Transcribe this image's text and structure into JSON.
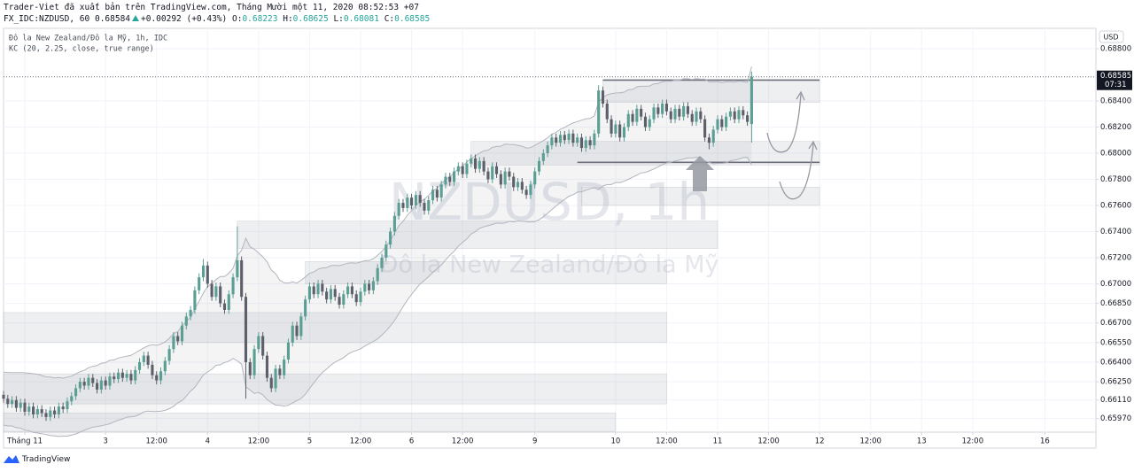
{
  "chart_data": {
    "type": "candlestick",
    "title": "Trader-Viet đã xuất bản trên TradingView.com, Tháng Mười một 11, 2020 08:52:53 +07",
    "quote": {
      "symbol": "FX_IDC:NZDUSD, 60",
      "last": "0.68584",
      "change": "+0.00292 (+0.43%)",
      "fields": [
        {
          "key": "O:",
          "value": "0.68223"
        },
        {
          "key": "H:",
          "value": "0.68625"
        },
        {
          "key": "L:",
          "value": "0.68081"
        },
        {
          "key": "C:",
          "value": "0.68585"
        }
      ]
    },
    "legend": [
      "Đô la New Zealand/Đô la Mỹ, 1h, IDC",
      "KC (20, 2.25, close, true range)"
    ],
    "watermark": [
      "NZDUSD, 1h",
      "Đô la New Zealand/Đô la Mỹ"
    ],
    "currency": "USD",
    "countdown": "07:31",
    "price_label": "0.68585",
    "branding": "TradingView",
    "kc_length": 20,
    "kc_mult": 2.25,
    "up_color": "#5b9e94",
    "down_color": "#5d606b",
    "xlim": [
      0,
      257
    ],
    "ylim": [
      0.65864,
      0.68956
    ],
    "xticks": [
      {
        "value": 5,
        "label": "Tháng 11"
      },
      {
        "value": 24,
        "label": "3"
      },
      {
        "value": 36,
        "label": "12:00"
      },
      {
        "value": 48,
        "label": "4"
      },
      {
        "value": 60,
        "label": "12:00"
      },
      {
        "value": 72,
        "label": "5"
      },
      {
        "value": 84,
        "label": "12:00"
      },
      {
        "value": 96,
        "label": "6"
      },
      {
        "value": 108,
        "label": "12:00"
      },
      {
        "value": 125,
        "label": "9"
      },
      {
        "value": 144,
        "label": "10"
      },
      {
        "value": 156,
        "label": "12:00"
      },
      {
        "value": 168,
        "label": "11"
      },
      {
        "value": 180,
        "label": "12:00"
      },
      {
        "value": 192,
        "label": "12"
      },
      {
        "value": 204,
        "label": "12:00"
      },
      {
        "value": 216,
        "label": "13"
      },
      {
        "value": 228,
        "label": "12:00"
      },
      {
        "value": 245,
        "label": "16"
      }
    ],
    "yticks": [
      {
        "value": 0.688,
        "label": "0.68800"
      },
      {
        "value": 0.684,
        "label": "0.68400"
      },
      {
        "value": 0.682,
        "label": "0.68200"
      },
      {
        "value": 0.68,
        "label": "0.68000"
      },
      {
        "value": 0.678,
        "label": "0.67800"
      },
      {
        "value": 0.676,
        "label": "0.67600"
      },
      {
        "value": 0.674,
        "label": "0.67400"
      },
      {
        "value": 0.672,
        "label": "0.67200"
      },
      {
        "value": 0.67,
        "label": "0.67000"
      },
      {
        "value": 0.6685,
        "label": "0.66850"
      },
      {
        "value": 0.667,
        "label": "0.66700"
      },
      {
        "value": 0.6655,
        "label": "0.66550"
      },
      {
        "value": 0.664,
        "label": "0.66400"
      },
      {
        "value": 0.6625,
        "label": "0.66250"
      },
      {
        "value": 0.6611,
        "label": "0.66110"
      },
      {
        "value": 0.6597,
        "label": "0.65970"
      }
    ],
    "zones": [
      {
        "x0": 0,
        "x1": 144,
        "y0": 0.6587,
        "y1": 0.6601
      },
      {
        "x0": 0,
        "x1": 156,
        "y0": 0.6608,
        "y1": 0.6631
      },
      {
        "x0": 0,
        "x1": 156,
        "y0": 0.6655,
        "y1": 0.6678
      },
      {
        "x0": 71,
        "x1": 156,
        "y0": 0.67,
        "y1": 0.6717
      },
      {
        "x0": 55,
        "x1": 168,
        "y0": 0.6727,
        "y1": 0.6748
      },
      {
        "x0": 110,
        "x1": 192,
        "y0": 0.6791,
        "y1": 0.6809
      },
      {
        "x0": 136,
        "x1": 192,
        "y0": 0.676,
        "y1": 0.6774
      },
      {
        "x0": 141,
        "x1": 192,
        "y0": 0.6839,
        "y1": 0.6856
      }
    ],
    "levels": [
      {
        "x0": 141,
        "x1": 192,
        "y": 0.6856
      },
      {
        "x0": 135,
        "x1": 192,
        "y": 0.6793
      }
    ],
    "candles": [
      [
        0.6615,
        0.6618,
        0.6609,
        0.6612
      ],
      [
        0.6612,
        0.6615,
        0.6605,
        0.6608
      ],
      [
        0.6608,
        0.6614,
        0.6605,
        0.6611
      ],
      [
        0.6611,
        0.6614,
        0.6602,
        0.6605
      ],
      [
        0.6605,
        0.6612,
        0.6602,
        0.6609
      ],
      [
        0.6609,
        0.6612,
        0.6599,
        0.6602
      ],
      [
        0.6602,
        0.6609,
        0.6599,
        0.6606
      ],
      [
        0.6606,
        0.6609,
        0.6597,
        0.66
      ],
      [
        0.66,
        0.6607,
        0.6597,
        0.6604
      ],
      [
        0.6604,
        0.6607,
        0.6598,
        0.6601
      ],
      [
        0.6601,
        0.6604,
        0.6595,
        0.6598
      ],
      [
        0.6598,
        0.6606,
        0.6595,
        0.6603
      ],
      [
        0.6603,
        0.6606,
        0.6597,
        0.66
      ],
      [
        0.66,
        0.6609,
        0.6597,
        0.6606
      ],
      [
        0.6606,
        0.6609,
        0.6601,
        0.6604
      ],
      [
        0.6604,
        0.6613,
        0.6601,
        0.661
      ],
      [
        0.661,
        0.6617,
        0.6607,
        0.6614
      ],
      [
        0.6614,
        0.6623,
        0.6611,
        0.662
      ],
      [
        0.662,
        0.6628,
        0.6617,
        0.6625
      ],
      [
        0.6625,
        0.6628,
        0.6619,
        0.6622
      ],
      [
        0.6622,
        0.6631,
        0.6619,
        0.6628
      ],
      [
        0.6628,
        0.6631,
        0.6621,
        0.6624
      ],
      [
        0.6624,
        0.6627,
        0.6616,
        0.6619
      ],
      [
        0.6619,
        0.6629,
        0.6616,
        0.6626
      ],
      [
        0.6626,
        0.6629,
        0.6619,
        0.6622
      ],
      [
        0.6622,
        0.6632,
        0.6619,
        0.6629
      ],
      [
        0.6629,
        0.6632,
        0.6624,
        0.6627
      ],
      [
        0.6627,
        0.6635,
        0.6624,
        0.6632
      ],
      [
        0.6632,
        0.6635,
        0.6625,
        0.6628
      ],
      [
        0.6628,
        0.6634,
        0.6625,
        0.6631
      ],
      [
        0.6631,
        0.6634,
        0.6623,
        0.6626
      ],
      [
        0.6626,
        0.6637,
        0.6623,
        0.6634
      ],
      [
        0.6634,
        0.6643,
        0.6631,
        0.664
      ],
      [
        0.664,
        0.6648,
        0.6637,
        0.6645
      ],
      [
        0.6645,
        0.6648,
        0.6635,
        0.6638
      ],
      [
        0.6638,
        0.6641,
        0.6627,
        0.663
      ],
      [
        0.663,
        0.6633,
        0.6623,
        0.6626
      ],
      [
        0.6626,
        0.6636,
        0.6623,
        0.6633
      ],
      [
        0.6633,
        0.6644,
        0.663,
        0.6641
      ],
      [
        0.6641,
        0.6653,
        0.6638,
        0.665
      ],
      [
        0.665,
        0.6663,
        0.6647,
        0.666
      ],
      [
        0.666,
        0.6663,
        0.6653,
        0.6656
      ],
      [
        0.6656,
        0.6671,
        0.6653,
        0.6668
      ],
      [
        0.6668,
        0.6678,
        0.6665,
        0.6675
      ],
      [
        0.6675,
        0.6683,
        0.6672,
        0.668
      ],
      [
        0.668,
        0.6698,
        0.6677,
        0.6695
      ],
      [
        0.6695,
        0.6708,
        0.6692,
        0.6705
      ],
      [
        0.6705,
        0.6719,
        0.6702,
        0.6714
      ],
      [
        0.6714,
        0.6717,
        0.6697,
        0.67
      ],
      [
        0.67,
        0.6703,
        0.6687,
        0.669
      ],
      [
        0.669,
        0.6701,
        0.6687,
        0.6698
      ],
      [
        0.6698,
        0.6701,
        0.6682,
        0.6685
      ],
      [
        0.6685,
        0.6688,
        0.6677,
        0.668
      ],
      [
        0.668,
        0.6695,
        0.6677,
        0.6692
      ],
      [
        0.6692,
        0.6708,
        0.6689,
        0.6705
      ],
      [
        0.6705,
        0.6744,
        0.6702,
        0.6718
      ],
      [
        0.6718,
        0.6721,
        0.6687,
        0.669
      ],
      [
        0.669,
        0.6693,
        0.6612,
        0.664
      ],
      [
        0.664,
        0.6643,
        0.6627,
        0.663
      ],
      [
        0.663,
        0.6653,
        0.6627,
        0.665
      ],
      [
        0.665,
        0.6663,
        0.6647,
        0.666
      ],
      [
        0.666,
        0.6663,
        0.6642,
        0.6645
      ],
      [
        0.6645,
        0.6648,
        0.6625,
        0.6628
      ],
      [
        0.6628,
        0.6631,
        0.6617,
        0.662
      ],
      [
        0.662,
        0.6638,
        0.6617,
        0.6635
      ],
      [
        0.6635,
        0.6638,
        0.6627,
        0.663
      ],
      [
        0.663,
        0.6645,
        0.6627,
        0.6642
      ],
      [
        0.6642,
        0.6658,
        0.6639,
        0.6655
      ],
      [
        0.6655,
        0.6671,
        0.6652,
        0.6668
      ],
      [
        0.6668,
        0.6671,
        0.6657,
        0.666
      ],
      [
        0.666,
        0.6678,
        0.6657,
        0.6675
      ],
      [
        0.6675,
        0.6691,
        0.6672,
        0.6688
      ],
      [
        0.6688,
        0.6701,
        0.6685,
        0.6698
      ],
      [
        0.6698,
        0.6701,
        0.6689,
        0.6692
      ],
      [
        0.6692,
        0.6703,
        0.6689,
        0.67
      ],
      [
        0.67,
        0.6703,
        0.6691,
        0.6694
      ],
      [
        0.6694,
        0.6697,
        0.6685,
        0.6688
      ],
      [
        0.6688,
        0.6699,
        0.6685,
        0.6696
      ],
      [
        0.6696,
        0.6699,
        0.6687,
        0.669
      ],
      [
        0.669,
        0.6693,
        0.6681,
        0.6684
      ],
      [
        0.6684,
        0.6695,
        0.6681,
        0.6692
      ],
      [
        0.6692,
        0.6701,
        0.6689,
        0.6698
      ],
      [
        0.6698,
        0.6701,
        0.6689,
        0.6692
      ],
      [
        0.6692,
        0.6695,
        0.6683,
        0.6686
      ],
      [
        0.6686,
        0.6697,
        0.6683,
        0.6694
      ],
      [
        0.6694,
        0.6703,
        0.6691,
        0.67
      ],
      [
        0.67,
        0.6703,
        0.6692,
        0.6695
      ],
      [
        0.6695,
        0.6705,
        0.6692,
        0.6702
      ],
      [
        0.6702,
        0.6715,
        0.6699,
        0.6712
      ],
      [
        0.6712,
        0.6723,
        0.6709,
        0.672
      ],
      [
        0.672,
        0.6733,
        0.6717,
        0.673
      ],
      [
        0.673,
        0.6743,
        0.6727,
        0.674
      ],
      [
        0.674,
        0.6755,
        0.6737,
        0.6752
      ],
      [
        0.6752,
        0.6765,
        0.6749,
        0.6762
      ],
      [
        0.6762,
        0.6765,
        0.6755,
        0.6758
      ],
      [
        0.6758,
        0.6769,
        0.6755,
        0.6766
      ],
      [
        0.6766,
        0.6769,
        0.6757,
        0.676
      ],
      [
        0.676,
        0.6771,
        0.6757,
        0.6768
      ],
      [
        0.6768,
        0.6771,
        0.6759,
        0.6762
      ],
      [
        0.6762,
        0.6765,
        0.6753,
        0.6756
      ],
      [
        0.6756,
        0.6767,
        0.6753,
        0.6764
      ],
      [
        0.6764,
        0.6775,
        0.6761,
        0.6772
      ],
      [
        0.6772,
        0.6775,
        0.6763,
        0.6766
      ],
      [
        0.6766,
        0.6779,
        0.6763,
        0.6776
      ],
      [
        0.6776,
        0.6785,
        0.6773,
        0.6782
      ],
      [
        0.6782,
        0.6785,
        0.6775,
        0.6778
      ],
      [
        0.6778,
        0.6789,
        0.6775,
        0.6786
      ],
      [
        0.6786,
        0.6793,
        0.6783,
        0.679
      ],
      [
        0.679,
        0.6793,
        0.6781,
        0.6784
      ],
      [
        0.6784,
        0.6795,
        0.6781,
        0.6792
      ],
      [
        0.6792,
        0.6799,
        0.6789,
        0.6796
      ],
      [
        0.6796,
        0.6799,
        0.6785,
        0.6788
      ],
      [
        0.6788,
        0.6797,
        0.6785,
        0.6794
      ],
      [
        0.6794,
        0.6797,
        0.6783,
        0.6786
      ],
      [
        0.6786,
        0.6789,
        0.6777,
        0.678
      ],
      [
        0.678,
        0.6793,
        0.6777,
        0.679
      ],
      [
        0.679,
        0.6793,
        0.6781,
        0.6784
      ],
      [
        0.6784,
        0.6787,
        0.6773,
        0.6776
      ],
      [
        0.6776,
        0.6789,
        0.6773,
        0.6786
      ],
      [
        0.6786,
        0.6789,
        0.6779,
        0.6782
      ],
      [
        0.6782,
        0.6785,
        0.6771,
        0.6774
      ],
      [
        0.6774,
        0.6781,
        0.6771,
        0.6778
      ],
      [
        0.6778,
        0.6781,
        0.6769,
        0.6772
      ],
      [
        0.6772,
        0.6775,
        0.6765,
        0.6768
      ],
      [
        0.6768,
        0.6779,
        0.6765,
        0.6776
      ],
      [
        0.6776,
        0.6789,
        0.6773,
        0.6786
      ],
      [
        0.6786,
        0.6797,
        0.6783,
        0.6794
      ],
      [
        0.6794,
        0.6803,
        0.6791,
        0.68
      ],
      [
        0.68,
        0.6809,
        0.6797,
        0.6806
      ],
      [
        0.6806,
        0.6815,
        0.6803,
        0.6812
      ],
      [
        0.6812,
        0.6815,
        0.6805,
        0.6808
      ],
      [
        0.6808,
        0.6817,
        0.6805,
        0.6814
      ],
      [
        0.6814,
        0.6817,
        0.6807,
        0.681
      ],
      [
        0.681,
        0.6818,
        0.6807,
        0.6815
      ],
      [
        0.6815,
        0.6818,
        0.6805,
        0.6808
      ],
      [
        0.6808,
        0.6815,
        0.6805,
        0.6812
      ],
      [
        0.6812,
        0.6815,
        0.6801,
        0.6804
      ],
      [
        0.6804,
        0.6813,
        0.6801,
        0.681
      ],
      [
        0.681,
        0.6813,
        0.6803,
        0.6806
      ],
      [
        0.6806,
        0.6818,
        0.6803,
        0.6815
      ],
      [
        0.6815,
        0.6852,
        0.6812,
        0.6848
      ],
      [
        0.6848,
        0.6851,
        0.6835,
        0.6838
      ],
      [
        0.6838,
        0.6841,
        0.6823,
        0.6826
      ],
      [
        0.6826,
        0.6829,
        0.6812,
        0.6815
      ],
      [
        0.6815,
        0.6825,
        0.6812,
        0.6822
      ],
      [
        0.6822,
        0.6825,
        0.6809,
        0.6812
      ],
      [
        0.6812,
        0.6823,
        0.6809,
        0.682
      ],
      [
        0.682,
        0.6833,
        0.6817,
        0.683
      ],
      [
        0.683,
        0.6833,
        0.6821,
        0.6824
      ],
      [
        0.6824,
        0.6837,
        0.6821,
        0.6834
      ],
      [
        0.6834,
        0.6837,
        0.6825,
        0.6828
      ],
      [
        0.6828,
        0.6831,
        0.6817,
        0.682
      ],
      [
        0.682,
        0.6829,
        0.6817,
        0.6826
      ],
      [
        0.6826,
        0.6838,
        0.6823,
        0.6835
      ],
      [
        0.6835,
        0.6838,
        0.6827,
        0.683
      ],
      [
        0.683,
        0.6841,
        0.6827,
        0.6838
      ],
      [
        0.6838,
        0.6841,
        0.6829,
        0.6832
      ],
      [
        0.6832,
        0.6835,
        0.6823,
        0.6826
      ],
      [
        0.6826,
        0.6837,
        0.6823,
        0.6834
      ],
      [
        0.6834,
        0.6837,
        0.6825,
        0.6828
      ],
      [
        0.6828,
        0.6839,
        0.6825,
        0.6836
      ],
      [
        0.6836,
        0.6839,
        0.6827,
        0.683
      ],
      [
        0.683,
        0.6833,
        0.6821,
        0.6824
      ],
      [
        0.6824,
        0.6835,
        0.6821,
        0.6832
      ],
      [
        0.6832,
        0.6835,
        0.6823,
        0.6826
      ],
      [
        0.6826,
        0.6829,
        0.6809,
        0.6812
      ],
      [
        0.6812,
        0.6815,
        0.6803,
        0.6808
      ],
      [
        0.6808,
        0.6821,
        0.6805,
        0.6818
      ],
      [
        0.6818,
        0.6829,
        0.6815,
        0.6826
      ],
      [
        0.6826,
        0.6829,
        0.6817,
        0.682
      ],
      [
        0.682,
        0.6831,
        0.6817,
        0.6828
      ],
      [
        0.6828,
        0.6835,
        0.6825,
        0.6832
      ],
      [
        0.6832,
        0.6835,
        0.6823,
        0.6826
      ],
      [
        0.6826,
        0.6836,
        0.6823,
        0.6833
      ],
      [
        0.6833,
        0.6836,
        0.6826,
        0.6829
      ],
      [
        0.6829,
        0.6832,
        0.6821,
        0.6824
      ],
      [
        0.68223,
        0.68625,
        0.68081,
        0.68585
      ]
    ]
  }
}
